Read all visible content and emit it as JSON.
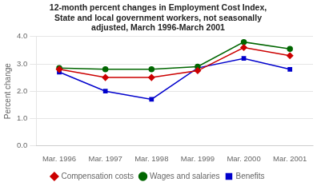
{
  "chart_data": {
    "type": "line",
    "title": "12-month percent changes in Employment Cost Index,\nState and local government workers, not seasonally\nadjusted, March 1996-March 2001",
    "ylabel": "Percent change",
    "categories": [
      "Mar. 1996",
      "Mar. 1997",
      "Mar. 1998",
      "Mar. 1999",
      "Mar. 2000",
      "Mar. 2001"
    ],
    "series": [
      {
        "name": "Compensation costs",
        "color": "#cc0000",
        "marker": "diamond",
        "values": [
          2.8,
          2.5,
          2.5,
          2.75,
          3.6,
          3.3
        ]
      },
      {
        "name": "Wages and salaries",
        "color": "#006600",
        "marker": "circle",
        "values": [
          2.85,
          2.8,
          2.8,
          2.9,
          3.8,
          3.55
        ]
      },
      {
        "name": "Benefits",
        "color": "#0000cc",
        "marker": "square",
        "values": [
          2.7,
          2.0,
          1.7,
          2.85,
          3.2,
          2.8
        ]
      }
    ],
    "ylim": [
      0.0,
      4.0
    ],
    "yticks": [
      {
        "value": 0.0,
        "label": "0.0"
      },
      {
        "value": 1.0,
        "label": "1.0"
      },
      {
        "value": 2.0,
        "label": "2.0"
      },
      {
        "value": 3.0,
        "label": "3.0"
      },
      {
        "value": 4.0,
        "label": "4.0"
      }
    ],
    "grid": true,
    "legend": "bottom"
  }
}
